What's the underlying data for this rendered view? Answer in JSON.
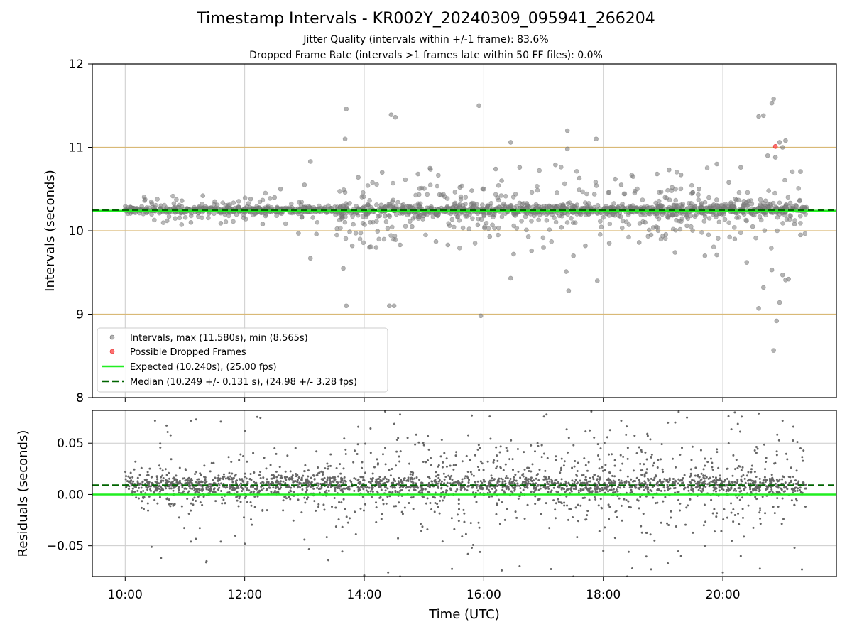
{
  "chart_data": [
    {
      "type": "scatter",
      "title": "Timestamp Intervals - KR002Y_20240309_095941_266204",
      "subtitle_1": "Jitter Quality (intervals within +/-1 frame): 83.6%",
      "subtitle_2": "Dropped Frame Rate (intervals >1 frames late within 50 FF files): 0.0%",
      "ylabel": "Intervals (seconds)",
      "ylim": [
        8,
        12
      ],
      "yticks": [
        "8",
        "9",
        "10",
        "11",
        "12"
      ],
      "x_range_hours": [
        9.45,
        21.9
      ],
      "xticks": [
        "10:00",
        "12:00",
        "14:00",
        "16:00",
        "18:00",
        "20:00"
      ],
      "grid": true,
      "reference_lines_y": [
        9,
        10,
        11
      ],
      "expected": 10.24,
      "median": 10.249,
      "legend_position": "lower-left",
      "legend": {
        "intervals": "Intervals, max (11.580s), min (8.565s)",
        "dropped": "Possible Dropped Frames",
        "expected": "Expected (10.240s), (25.00 fps)",
        "median": "Median (10.249 +/- 0.131 s), (24.98 +/- 3.28 fps)"
      },
      "series": [
        {
          "name": "Intervals, max (11.580s), min (8.565s)",
          "points": [
            [
              13.7,
              11.46
            ],
            [
              13.68,
              11.1
            ],
            [
              13.7,
              9.1
            ],
            [
              13.65,
              9.55
            ],
            [
              14.45,
              11.39
            ],
            [
              14.52,
              11.36
            ],
            [
              14.42,
              9.1
            ],
            [
              14.5,
              9.1
            ],
            [
              15.92,
              11.5
            ],
            [
              15.95,
              8.98
            ],
            [
              16.45,
              11.06
            ],
            [
              16.45,
              9.43
            ],
            [
              17.4,
              11.2
            ],
            [
              17.4,
              10.98
            ],
            [
              17.42,
              9.28
            ],
            [
              17.38,
              9.51
            ],
            [
              17.88,
              11.1
            ],
            [
              17.9,
              9.4
            ],
            [
              13.1,
              10.83
            ],
            [
              13.1,
              9.67
            ],
            [
              20.6,
              11.37
            ],
            [
              20.68,
              11.38
            ],
            [
              20.85,
              11.58
            ],
            [
              20.82,
              11.53
            ],
            [
              20.75,
              10.9
            ],
            [
              20.88,
              10.88
            ],
            [
              20.95,
              11.06
            ],
            [
              21.05,
              11.08
            ],
            [
              21.0,
              11.0
            ],
            [
              20.82,
              9.53
            ],
            [
              20.68,
              9.32
            ],
            [
              20.6,
              9.07
            ],
            [
              20.9,
              8.92
            ],
            [
              20.85,
              8.565
            ],
            [
              20.95,
              9.14
            ],
            [
              21.05,
              9.41
            ],
            [
              21.0,
              9.47
            ],
            [
              21.1,
              9.42
            ],
            [
              19.9,
              10.8
            ],
            [
              19.7,
              9.7
            ],
            [
              16.2,
              10.74
            ],
            [
              16.6,
              10.76
            ],
            [
              18.5,
              10.65
            ],
            [
              18.9,
              10.68
            ],
            [
              19.1,
              10.73
            ],
            [
              14.9,
              10.68
            ],
            [
              15.1,
              10.75
            ],
            [
              13.9,
              10.64
            ],
            [
              14.3,
              10.7
            ],
            [
              15.6,
              10.52
            ],
            [
              17.2,
              10.79
            ],
            [
              17.6,
              10.63
            ],
            [
              18.2,
              10.62
            ],
            [
              19.3,
              10.67
            ],
            [
              20.3,
              10.76
            ],
            [
              21.3,
              10.71
            ],
            [
              14.2,
              9.8
            ],
            [
              14.6,
              9.83
            ],
            [
              15.2,
              9.87
            ],
            [
              15.4,
              9.83
            ],
            [
              16.5,
              9.72
            ],
            [
              16.8,
              9.76
            ],
            [
              17.0,
              9.8
            ],
            [
              17.5,
              9.7
            ],
            [
              17.7,
              9.82
            ],
            [
              18.1,
              9.85
            ],
            [
              18.6,
              9.86
            ],
            [
              19.2,
              9.74
            ],
            [
              19.9,
              9.71
            ],
            [
              20.4,
              9.62
            ],
            [
              21.3,
              9.95
            ],
            [
              13.8,
              9.82
            ],
            [
              12.9,
              9.97
            ],
            [
              13.2,
              9.96
            ],
            [
              12.6,
              10.5
            ],
            [
              13.0,
              10.55
            ],
            [
              11.5,
              10.35
            ],
            [
              10.6,
              10.3
            ],
            [
              10.95,
              10.36
            ],
            [
              11.3,
              10.42
            ],
            [
              12.1,
              10.38
            ],
            [
              12.5,
              10.4
            ],
            [
              10.7,
              10.12
            ],
            [
              11.1,
              10.1
            ],
            [
              11.6,
              10.09
            ],
            [
              12.3,
              10.08
            ],
            [
              13.4,
              10.3
            ],
            [
              15.8,
              10.48
            ],
            [
              16.0,
              10.5
            ],
            [
              16.3,
              10.6
            ],
            [
              18.3,
              10.55
            ],
            [
              19.6,
              10.5
            ],
            [
              20.1,
              10.58
            ],
            [
              20.2,
              9.9
            ],
            [
              18.8,
              9.95
            ],
            [
              16.1,
              9.93
            ],
            [
              14.1,
              10.1
            ],
            [
              14.8,
              10.05
            ],
            [
              15.9,
              10.07
            ],
            [
              17.3,
              10.04
            ],
            [
              18.7,
              10.1
            ],
            [
              19.4,
              10.06
            ],
            [
              20.5,
              10.05
            ],
            [
              21.2,
              10.08
            ]
          ]
        },
        {
          "name": "Possible Dropped Frames",
          "points": [
            [
              20.88,
              11.01
            ]
          ]
        }
      ]
    },
    {
      "type": "scatter",
      "xlabel": "Time (UTC)",
      "ylabel": "Residuals (seconds)",
      "ylim": [
        -0.08,
        0.082
      ],
      "yticks": [
        "−0.05",
        "0.00",
        "0.05"
      ],
      "ytick_values": [
        -0.05,
        0.0,
        0.05
      ],
      "x_range_hours": [
        9.45,
        21.9
      ],
      "xticks": [
        "10:00",
        "12:00",
        "14:00",
        "16:00",
        "18:00",
        "20:00"
      ],
      "grid": true,
      "expected_residual": 0.0,
      "median_residual": 0.009,
      "series": [
        {
          "name": "Residuals",
          "points": [
            [
              10.5,
              0.072
            ],
            [
              11.1,
              0.072
            ],
            [
              11.6,
              0.071
            ],
            [
              12.0,
              0.062
            ],
            [
              13.9,
              0.066
            ],
            [
              14.35,
              0.081
            ],
            [
              14.6,
              0.078
            ],
            [
              15.8,
              0.077
            ],
            [
              16.1,
              0.076
            ],
            [
              17.05,
              0.078
            ],
            [
              17.8,
              0.081
            ],
            [
              18.3,
              0.072
            ],
            [
              19.4,
              0.075
            ],
            [
              20.2,
              0.08
            ],
            [
              20.6,
              0.079
            ],
            [
              21.0,
              0.072
            ],
            [
              10.6,
              -0.062
            ],
            [
              11.1,
              -0.046
            ],
            [
              11.6,
              -0.046
            ],
            [
              12.0,
              -0.048
            ],
            [
              13.0,
              -0.044
            ],
            [
              13.4,
              -0.064
            ],
            [
              14.0,
              -0.079
            ],
            [
              14.4,
              -0.076
            ],
            [
              14.6,
              -0.08
            ],
            [
              15.8,
              -0.052
            ],
            [
              16.3,
              -0.074
            ],
            [
              16.6,
              -0.07
            ],
            [
              17.5,
              -0.08
            ],
            [
              18.0,
              -0.055
            ],
            [
              18.4,
              -0.08
            ],
            [
              18.8,
              -0.073
            ],
            [
              19.3,
              -0.06
            ],
            [
              19.7,
              -0.05
            ],
            [
              20.0,
              -0.076
            ],
            [
              20.3,
              -0.06
            ],
            [
              21.2,
              -0.052
            ],
            [
              12.5,
              0.045
            ],
            [
              13.2,
              0.042
            ],
            [
              15.0,
              0.048
            ],
            [
              16.9,
              0.05
            ],
            [
              18.6,
              0.046
            ],
            [
              19.9,
              0.044
            ],
            [
              21.3,
              0.045
            ]
          ]
        }
      ]
    }
  ]
}
